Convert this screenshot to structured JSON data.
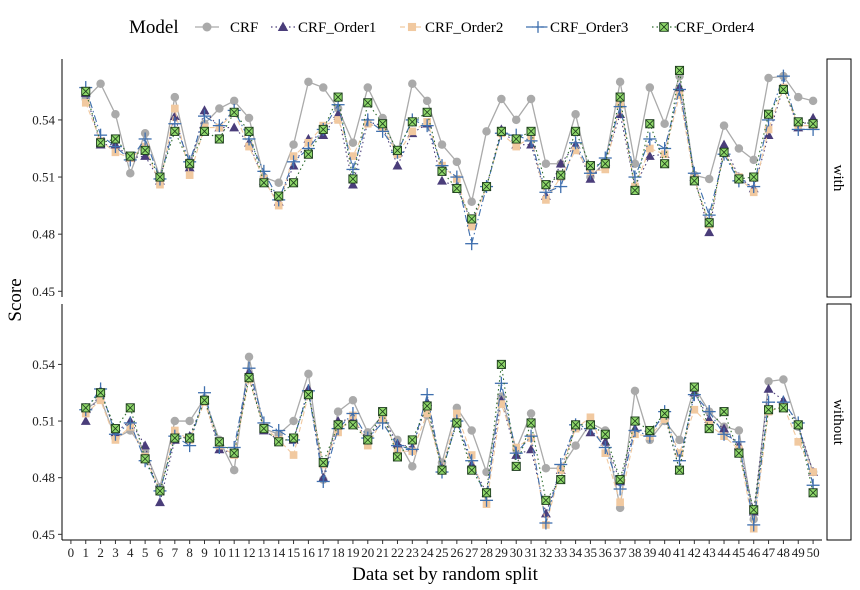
{
  "chart_data": {
    "type": "line",
    "xlabel": "Data set by random split",
    "ylabel": "Score",
    "legend_title": "Model",
    "legend_position": "top",
    "x": [
      1,
      2,
      3,
      4,
      5,
      6,
      7,
      8,
      9,
      10,
      11,
      12,
      13,
      14,
      15,
      16,
      17,
      18,
      19,
      20,
      21,
      22,
      23,
      24,
      25,
      26,
      27,
      28,
      29,
      30,
      31,
      32,
      33,
      34,
      35,
      36,
      37,
      38,
      39,
      40,
      41,
      42,
      43,
      44,
      45,
      46,
      47,
      48,
      49,
      50
    ],
    "x_ticks": [
      0,
      1,
      2,
      3,
      4,
      5,
      6,
      7,
      8,
      9,
      10,
      11,
      12,
      13,
      14,
      15,
      16,
      17,
      18,
      19,
      20,
      21,
      22,
      23,
      24,
      25,
      26,
      27,
      28,
      29,
      30,
      31,
      32,
      33,
      34,
      35,
      36,
      37,
      38,
      39,
      40,
      41,
      42,
      43,
      44,
      45,
      46,
      47,
      48,
      49,
      50
    ],
    "xlim": [
      -0.6,
      50.6
    ],
    "ylim": [
      0.447,
      0.572
    ],
    "y_ticks": [
      0.45,
      0.48,
      0.51,
      0.54
    ],
    "y_tick_labels": [
      "0.45",
      "0.48",
      "0.51",
      "0.54"
    ],
    "grid": false,
    "colors": {
      "CRF": "#aaaaaa",
      "CRF_Order1": "#4a3d7a",
      "CRF_Order2": "#f1c9a0",
      "CRF_Order3": "#3f6fae",
      "CRF_Order4": "#2d6b2d",
      "CRF_Order4_fill": "#8fd86a"
    },
    "series": [
      {
        "name": "CRF",
        "marker": "circle",
        "linetype": "solid"
      },
      {
        "name": "CRF_Order1",
        "marker": "triangle",
        "linetype": "dotted"
      },
      {
        "name": "CRF_Order2",
        "marker": "square",
        "linetype": "dashed"
      },
      {
        "name": "CRF_Order3",
        "marker": "plus",
        "linetype": "dashdot"
      },
      {
        "name": "CRF_Order4",
        "marker": "boxx",
        "linetype": "dotted"
      }
    ],
    "panels": [
      {
        "label": "with",
        "values": {
          "CRF": [
            0.551,
            0.559,
            0.543,
            0.512,
            0.533,
            0.51,
            0.552,
            0.518,
            0.538,
            0.546,
            0.55,
            0.541,
            0.51,
            0.507,
            0.527,
            0.56,
            0.557,
            0.546,
            0.528,
            0.557,
            0.541,
            0.522,
            0.559,
            0.55,
            0.527,
            0.518,
            0.497,
            0.534,
            0.551,
            0.54,
            0.551,
            0.517,
            0.517,
            0.543,
            0.51,
            0.518,
            0.56,
            0.517,
            0.557,
            0.538,
            0.563,
            0.511,
            0.509,
            0.537,
            0.525,
            0.519,
            0.562,
            0.563,
            0.552,
            0.55
          ],
          "CRF_Order1": [
            0.554,
            0.527,
            0.527,
            0.52,
            0.521,
            0.508,
            0.542,
            0.515,
            0.545,
            0.536,
            0.536,
            0.528,
            0.508,
            0.497,
            0.516,
            0.53,
            0.532,
            0.543,
            0.506,
            0.539,
            0.537,
            0.516,
            0.533,
            0.538,
            0.508,
            0.505,
            0.486,
            0.505,
            0.535,
            0.527,
            0.527,
            0.5,
            0.517,
            0.527,
            0.509,
            0.518,
            0.543,
            0.505,
            0.521,
            0.522,
            0.557,
            0.51,
            0.481,
            0.527,
            0.51,
            0.504,
            0.532,
            0.557,
            0.536,
            0.541
          ],
          "CRF_Order2": [
            0.549,
            0.529,
            0.523,
            0.52,
            0.526,
            0.506,
            0.546,
            0.511,
            0.536,
            0.536,
            0.544,
            0.526,
            0.509,
            0.495,
            0.521,
            0.528,
            0.537,
            0.54,
            0.521,
            0.538,
            0.536,
            0.522,
            0.534,
            0.539,
            0.516,
            0.509,
            0.484,
            0.505,
            0.533,
            0.526,
            0.531,
            0.498,
            0.51,
            0.524,
            0.513,
            0.514,
            0.548,
            0.505,
            0.525,
            0.522,
            0.553,
            0.509,
            0.485,
            0.523,
            0.51,
            0.502,
            0.535,
            0.557,
            0.537,
            0.537
          ],
          "CRF_Order3": [
            0.557,
            0.532,
            0.526,
            0.519,
            0.53,
            0.509,
            0.538,
            0.518,
            0.542,
            0.537,
            0.545,
            0.53,
            0.513,
            0.498,
            0.518,
            0.525,
            0.535,
            0.548,
            0.514,
            0.54,
            0.534,
            0.523,
            0.54,
            0.537,
            0.516,
            0.51,
            0.475,
            0.505,
            0.533,
            0.532,
            0.529,
            0.502,
            0.505,
            0.528,
            0.512,
            0.52,
            0.547,
            0.51,
            0.53,
            0.525,
            0.556,
            0.512,
            0.49,
            0.522,
            0.508,
            0.505,
            0.54,
            0.563,
            0.535,
            0.535
          ],
          "CRF_Order4": [
            0.555,
            0.528,
            0.53,
            0.521,
            0.524,
            0.51,
            0.534,
            0.517,
            0.534,
            0.53,
            0.544,
            0.534,
            0.507,
            0.5,
            0.507,
            0.522,
            0.535,
            0.552,
            0.509,
            0.549,
            0.538,
            0.524,
            0.539,
            0.544,
            0.513,
            0.504,
            0.488,
            0.505,
            0.534,
            0.53,
            0.534,
            0.506,
            0.511,
            0.534,
            0.516,
            0.517,
            0.552,
            0.503,
            0.538,
            0.517,
            0.566,
            0.508,
            0.486,
            0.523,
            0.509,
            0.51,
            0.543,
            0.556,
            0.539,
            0.538
          ]
        }
      },
      {
        "label": "without",
        "values": {
          "CRF": [
            0.516,
            0.522,
            0.501,
            0.505,
            0.494,
            0.475,
            0.51,
            0.51,
            0.522,
            0.5,
            0.484,
            0.544,
            0.506,
            0.503,
            0.51,
            0.535,
            0.479,
            0.515,
            0.521,
            0.504,
            0.513,
            0.5,
            0.486,
            0.513,
            0.488,
            0.517,
            0.505,
            0.483,
            0.523,
            0.495,
            0.514,
            0.485,
            0.485,
            0.497,
            0.509,
            0.505,
            0.464,
            0.526,
            0.5,
            0.51,
            0.5,
            0.528,
            0.515,
            0.507,
            0.505,
            0.458,
            0.531,
            0.532,
            0.507,
            0.483
          ],
          "CRF_Order1": [
            0.51,
            0.526,
            0.504,
            0.51,
            0.497,
            0.467,
            0.5,
            0.502,
            0.521,
            0.495,
            0.493,
            0.536,
            0.505,
            0.5,
            0.5,
            0.527,
            0.48,
            0.51,
            0.511,
            0.5,
            0.512,
            0.498,
            0.496,
            0.52,
            0.485,
            0.51,
            0.487,
            0.472,
            0.521,
            0.492,
            0.495,
            0.461,
            0.484,
            0.507,
            0.504,
            0.499,
            0.478,
            0.506,
            0.504,
            0.513,
            0.484,
            0.525,
            0.511,
            0.506,
            0.497,
            0.462,
            0.527,
            0.521,
            0.508,
            0.483
          ],
          "CRF_Order2": [
            0.514,
            0.521,
            0.5,
            0.507,
            0.491,
            0.473,
            0.505,
            0.5,
            0.52,
            0.497,
            0.492,
            0.532,
            0.507,
            0.5,
            0.492,
            0.524,
            0.487,
            0.504,
            0.513,
            0.497,
            0.511,
            0.494,
            0.494,
            0.514,
            0.484,
            0.514,
            0.492,
            0.466,
            0.519,
            0.496,
            0.501,
            0.455,
            0.484,
            0.506,
            0.512,
            0.493,
            0.467,
            0.503,
            0.502,
            0.511,
            0.493,
            0.516,
            0.508,
            0.502,
            0.495,
            0.453,
            0.515,
            0.518,
            0.499,
            0.483
          ],
          "CRF_Order3": [
            0.516,
            0.527,
            0.503,
            0.509,
            0.489,
            0.473,
            0.502,
            0.497,
            0.525,
            0.496,
            0.496,
            0.538,
            0.509,
            0.505,
            0.5,
            0.526,
            0.478,
            0.506,
            0.514,
            0.501,
            0.509,
            0.497,
            0.495,
            0.524,
            0.483,
            0.51,
            0.489,
            0.468,
            0.53,
            0.493,
            0.502,
            0.456,
            0.487,
            0.508,
            0.506,
            0.496,
            0.474,
            0.505,
            0.502,
            0.515,
            0.489,
            0.524,
            0.515,
            0.503,
            0.499,
            0.455,
            0.52,
            0.52,
            0.509,
            0.476
          ],
          "CRF_Order4": [
            0.517,
            0.525,
            0.506,
            0.517,
            0.49,
            0.473,
            0.501,
            0.501,
            0.521,
            0.499,
            0.493,
            0.533,
            0.506,
            0.499,
            0.501,
            0.524,
            0.488,
            0.508,
            0.508,
            0.5,
            0.515,
            0.491,
            0.5,
            0.518,
            0.484,
            0.509,
            0.484,
            0.472,
            0.54,
            0.486,
            0.509,
            0.468,
            0.479,
            0.508,
            0.508,
            0.503,
            0.479,
            0.51,
            0.505,
            0.514,
            0.484,
            0.528,
            0.506,
            0.515,
            0.493,
            0.463,
            0.516,
            0.517,
            0.508,
            0.472
          ]
        }
      }
    ]
  }
}
